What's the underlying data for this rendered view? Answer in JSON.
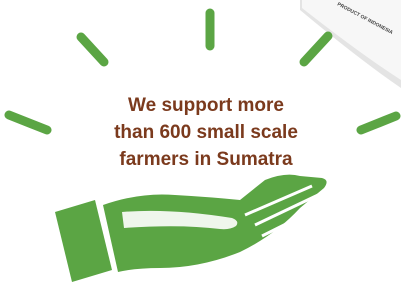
{
  "message_lines": [
    "We support more",
    "than 600 small scale",
    "farmers in Sumatra"
  ],
  "package_label": "PRODUCT OF INDONESIA"
}
